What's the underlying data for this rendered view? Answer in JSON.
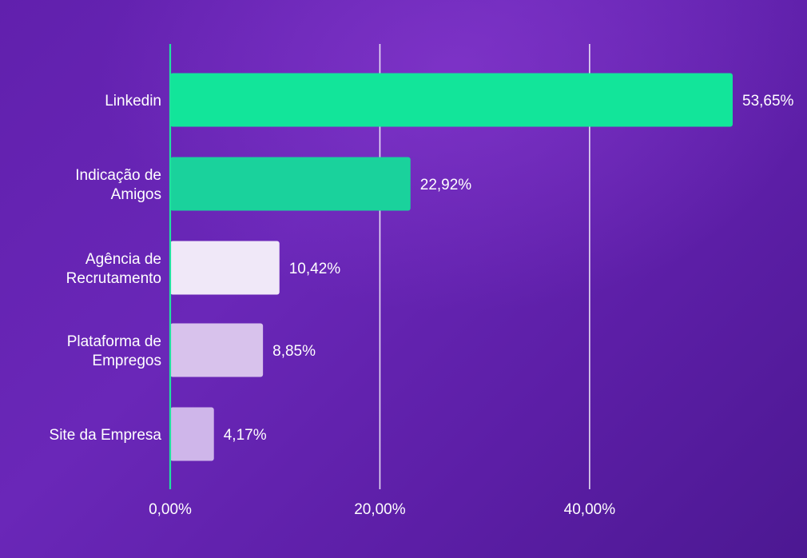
{
  "chart_data": {
    "type": "bar",
    "orientation": "horizontal",
    "title": "",
    "xlabel": "",
    "ylabel": "",
    "categories": [
      [
        "Linkedin"
      ],
      [
        "Indicação de",
        "Amigos"
      ],
      [
        "Agência de",
        "Recrutamento"
      ],
      [
        "Plataforma de",
        "Empregos"
      ],
      [
        "Site da Empresa"
      ]
    ],
    "values": [
      53.65,
      22.92,
      10.42,
      8.85,
      4.17
    ],
    "value_labels": [
      "53,65%",
      "22,92%",
      "10,42%",
      "8,85%",
      "4,17%"
    ],
    "bar_colors": [
      "#12e59a",
      "#1ad29c",
      "#f0e8f8",
      "#d8c2ec",
      "#cfb6ea"
    ],
    "xlim": [
      0,
      53.65
    ],
    "xticks": [
      0,
      20,
      40
    ],
    "xtick_labels": [
      "0,00%",
      "20,00%",
      "40,00%"
    ],
    "grid": true,
    "axis_color": "#20e0a0",
    "grid_color": "#ffffff",
    "legend": "none"
  }
}
